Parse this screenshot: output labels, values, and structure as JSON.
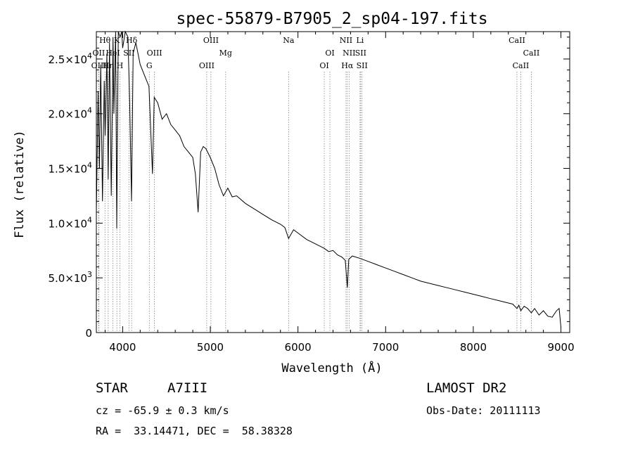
{
  "chart_data": {
    "type": "line",
    "title": "spec-55879-B7905_2_sp04-197.fits",
    "xlabel": "Wavelength (Å)",
    "ylabel": "Flux (relative)",
    "xlim": [
      3700,
      9100
    ],
    "ylim": [
      0,
      27500
    ],
    "x_ticks": [
      4000,
      5000,
      6000,
      7000,
      8000,
      9000
    ],
    "x_tick_labels": [
      "4000",
      "5000",
      "6000",
      "7000",
      "8000",
      "9000"
    ],
    "y_ticks": [
      0,
      5000,
      10000,
      15000,
      20000,
      25000
    ],
    "y_tick_labels": [
      {
        "m": "0",
        "e": ""
      },
      {
        "m": "5.0×10",
        "e": "3"
      },
      {
        "m": "1.0×10",
        "e": "4"
      },
      {
        "m": "1.5×10",
        "e": "4"
      },
      {
        "m": "2.0×10",
        "e": "4"
      },
      {
        "m": "2.5×10",
        "e": "4"
      }
    ],
    "grid": false,
    "series": [
      {
        "x": [
          3700,
          3720,
          3735,
          3750,
          3770,
          3790,
          3800,
          3820,
          3835,
          3850,
          3870,
          3890,
          3900,
          3920,
          3933,
          3950,
          3970,
          3990,
          4000,
          4030,
          4060,
          4080,
          4101,
          4120,
          4150,
          4200,
          4250,
          4300,
          4340,
          4360,
          4400,
          4450,
          4500,
          4550,
          4600,
          4650,
          4700,
          4750,
          4800,
          4830,
          4861,
          4890,
          4920,
          4950,
          5000,
          5050,
          5100,
          5150,
          5200,
          5250,
          5300,
          5400,
          5500,
          5600,
          5700,
          5800,
          5850,
          5893,
          5950,
          6000,
          6100,
          6200,
          6300,
          6350,
          6400,
          6450,
          6500,
          6540,
          6563,
          6580,
          6620,
          6700,
          6800,
          6900,
          7000,
          7100,
          7200,
          7300,
          7400,
          7500,
          7600,
          7700,
          7800,
          7900,
          8000,
          8100,
          8200,
          8300,
          8400,
          8450,
          8498,
          8520,
          8542,
          8580,
          8620,
          8662,
          8700,
          8750,
          8800,
          8850,
          8900,
          8950,
          8980,
          9000
        ],
        "y": [
          11000,
          22000,
          15000,
          24500,
          12000,
          23000,
          18000,
          25500,
          14000,
          26500,
          12500,
          27000,
          20000,
          27500,
          9500,
          28000,
          27000,
          28500,
          26000,
          27500,
          27000,
          21000,
          12000,
          25500,
          26500,
          24500,
          23500,
          22500,
          14500,
          21500,
          21000,
          19500,
          20000,
          19000,
          18500,
          18000,
          17000,
          16500,
          16000,
          14500,
          11000,
          16500,
          17000,
          16800,
          16000,
          15000,
          13500,
          12500,
          13200,
          12400,
          12500,
          11800,
          11300,
          10800,
          10300,
          9900,
          9600,
          8600,
          9400,
          9100,
          8500,
          8100,
          7700,
          7400,
          7500,
          7100,
          6900,
          6600,
          4100,
          6700,
          7000,
          6800,
          6500,
          6200,
          5900,
          5600,
          5300,
          5000,
          4700,
          4500,
          4300,
          4100,
          3900,
          3700,
          3500,
          3300,
          3100,
          2900,
          2700,
          2600,
          2200,
          2500,
          2000,
          2400,
          2200,
          1800,
          2200,
          1600,
          2000,
          1500,
          1400,
          2000,
          2200,
          500
        ]
      }
    ],
    "lines": [
      {
        "label": "Hθ",
        "wl": 3798,
        "row": 0
      },
      {
        "label": "K",
        "wl": 3934,
        "row": 0
      },
      {
        "label": "Hδ",
        "wl": 4102,
        "row": 0
      },
      {
        "label": "OIII",
        "wl": 5007,
        "row": 0
      },
      {
        "label": "Na",
        "wl": 5893,
        "row": 0
      },
      {
        "label": "NII",
        "wl": 6548,
        "row": 0
      },
      {
        "label": "Li",
        "wl": 6708,
        "row": 0
      },
      {
        "label": "CaII",
        "wl": 8498,
        "row": 0
      },
      {
        "label": "OII",
        "wl": 3727,
        "row": 1
      },
      {
        "label": "HeI",
        "wl": 3889,
        "row": 1
      },
      {
        "label": "SII",
        "wl": 4072,
        "row": 1
      },
      {
        "label": "OIII",
        "wl": 4363,
        "row": 1
      },
      {
        "label": "Mg",
        "wl": 5175,
        "row": 1
      },
      {
        "label": "OI",
        "wl": 6364,
        "row": 1
      },
      {
        "label": "NII",
        "wl": 6583,
        "row": 1
      },
      {
        "label": "SII",
        "wl": 6716,
        "row": 1
      },
      {
        "label": "CaII",
        "wl": 8662,
        "row": 1
      },
      {
        "label": "OIII",
        "wl": 3729,
        "row": 2
      },
      {
        "label": "Hη",
        "wl": 3835,
        "row": 2
      },
      {
        "label": "H",
        "wl": 3968,
        "row": 2
      },
      {
        "label": "G",
        "wl": 4304,
        "row": 2
      },
      {
        "label": "OIII",
        "wl": 4959,
        "row": 2
      },
      {
        "label": "OI",
        "wl": 6300,
        "row": 2
      },
      {
        "label": "Hα",
        "wl": 6563,
        "row": 2
      },
      {
        "label": "SII",
        "wl": 6731,
        "row": 2
      },
      {
        "label": "CaII",
        "wl": 8542,
        "row": 2
      }
    ]
  },
  "info": {
    "object": "STAR",
    "subclass": "A7III",
    "survey": "LAMOST DR2",
    "cz": "cz = -65.9 ± 0.3 km/s",
    "obs_date": "Obs-Date: 20111113",
    "radec": "RA =  33.14471, DEC =  58.38328"
  }
}
